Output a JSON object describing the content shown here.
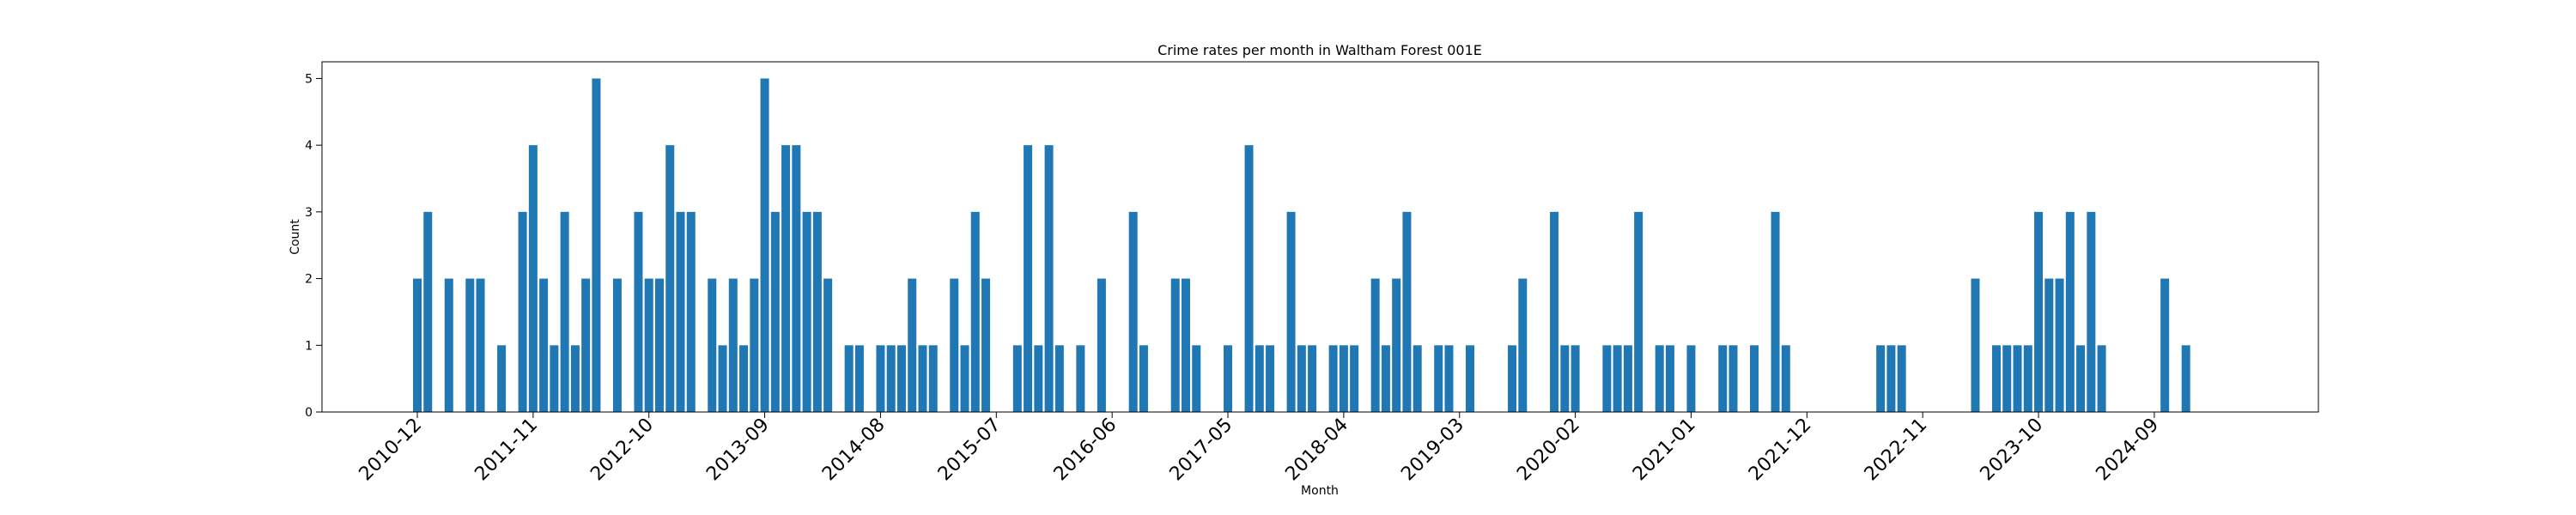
{
  "chart_data": {
    "type": "bar",
    "title": "Crime rates per month in Waltham Forest 001E",
    "xlabel": "Month",
    "ylabel": "Count",
    "ylim": [
      0,
      5.25
    ],
    "yticks": [
      0,
      1,
      2,
      3,
      4,
      5
    ],
    "grid": false,
    "legend": "none",
    "bar_color": "#1f77b4",
    "xticks": [
      "2010-12",
      "2011-11",
      "2012-10",
      "2013-09",
      "2014-08",
      "2015-07",
      "2016-06",
      "2017-05",
      "2018-04",
      "2019-03",
      "2020-02",
      "2021-01",
      "2021-12",
      "2022-11",
      "2023-10",
      "2024-09"
    ],
    "categories": [
      "2010-12",
      "2011-01",
      "2011-03",
      "2011-05",
      "2011-06",
      "2011-08",
      "2011-10",
      "2011-11",
      "2011-12",
      "2012-01",
      "2012-02",
      "2012-03",
      "2012-04",
      "2012-05",
      "2012-07",
      "2012-09",
      "2012-10",
      "2012-11",
      "2012-12",
      "2013-01",
      "2013-02",
      "2013-04",
      "2013-05",
      "2013-06",
      "2013-07",
      "2013-08",
      "2013-09",
      "2013-10",
      "2013-11",
      "2013-12",
      "2014-01",
      "2014-02",
      "2014-03",
      "2014-05",
      "2014-06",
      "2014-08",
      "2014-09",
      "2014-10",
      "2014-11",
      "2014-12",
      "2015-01",
      "2015-03",
      "2015-04",
      "2015-05",
      "2015-06",
      "2015-09",
      "2015-10",
      "2015-11",
      "2015-12",
      "2016-01",
      "2016-03",
      "2016-05",
      "2016-08",
      "2016-09",
      "2016-12",
      "2017-01",
      "2017-02",
      "2017-05",
      "2017-07",
      "2017-08",
      "2017-09",
      "2017-11",
      "2017-12",
      "2018-01",
      "2018-03",
      "2018-04",
      "2018-05",
      "2018-07",
      "2018-08",
      "2018-09",
      "2018-10",
      "2018-11",
      "2019-01",
      "2019-02",
      "2019-04",
      "2019-08",
      "2019-09",
      "2019-12",
      "2020-01",
      "2020-02",
      "2020-05",
      "2020-06",
      "2020-07",
      "2020-08",
      "2020-10",
      "2020-11",
      "2021-01",
      "2021-04",
      "2021-05",
      "2021-07",
      "2021-09",
      "2021-10",
      "2022-07",
      "2022-08",
      "2022-09",
      "2023-04",
      "2023-06",
      "2023-07",
      "2023-08",
      "2023-09",
      "2023-10",
      "2023-11",
      "2023-12",
      "2024-01",
      "2024-02",
      "2024-03",
      "2024-04",
      "2024-10",
      "2024-12"
    ],
    "values": [
      2,
      3,
      2,
      2,
      2,
      1,
      3,
      4,
      2,
      1,
      3,
      1,
      2,
      5,
      2,
      3,
      2,
      2,
      4,
      3,
      3,
      2,
      1,
      2,
      1,
      2,
      5,
      3,
      4,
      4,
      3,
      3,
      2,
      1,
      1,
      1,
      1,
      1,
      2,
      1,
      1,
      2,
      1,
      3,
      2,
      1,
      4,
      1,
      4,
      1,
      1,
      2,
      3,
      1,
      2,
      2,
      1,
      1,
      4,
      1,
      1,
      3,
      1,
      1,
      1,
      1,
      1,
      2,
      1,
      2,
      3,
      1,
      1,
      1,
      1,
      1,
      2,
      3,
      1,
      1,
      1,
      1,
      1,
      3,
      1,
      1,
      1,
      1,
      1,
      1,
      3,
      1,
      1,
      1,
      1,
      2,
      1,
      1,
      1,
      1,
      3,
      2,
      2,
      3,
      1,
      3,
      1,
      2,
      1
    ]
  }
}
